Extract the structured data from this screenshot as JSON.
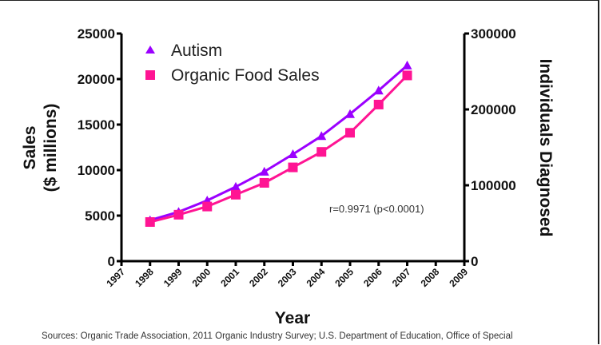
{
  "chart_data": {
    "type": "line",
    "title": "",
    "xlabel": "Year",
    "ylabel": "Sales\n($ millions)",
    "ylabel_lines": [
      "Sales",
      "($ millions)"
    ],
    "y2label": "Individuals Diagnosed",
    "x_ticks": [
      "1997",
      "1998",
      "1999",
      "2000",
      "2001",
      "2002",
      "2003",
      "2004",
      "2005",
      "2006",
      "2007",
      "2008",
      "2009"
    ],
    "xlim": [
      1997,
      2009
    ],
    "ylim": [
      0,
      25000
    ],
    "y_ticks": [
      "0",
      "5000",
      "10000",
      "15000",
      "20000",
      "25000"
    ],
    "y2lim": [
      0,
      300000
    ],
    "y2_ticks": [
      "0",
      "100000",
      "200000",
      "300000"
    ],
    "grid": false,
    "legend_position": "top-left",
    "series": [
      {
        "name": "Autism",
        "axis": "right",
        "marker": "triangle",
        "color": "#9b00ff",
        "x": [
          1998,
          1999,
          2000,
          2001,
          2002,
          2003,
          2004,
          2005,
          2006,
          2007
        ],
        "values": [
          54000,
          65000,
          80000,
          98000,
          118000,
          141000,
          165000,
          194000,
          225000,
          258000
        ]
      },
      {
        "name": "Organic Food Sales",
        "axis": "left",
        "marker": "square",
        "color": "#ff1493",
        "x": [
          1998,
          1999,
          2000,
          2001,
          2002,
          2003,
          2004,
          2005,
          2006,
          2007
        ],
        "values": [
          4300,
          5100,
          6000,
          7300,
          8600,
          10300,
          12000,
          14100,
          17200,
          20400
        ]
      }
    ],
    "annotations": [
      "r=0.9971 (p<0.0001)"
    ]
  },
  "source_note": "Sources: Organic Trade Association,  2011 Organic Industry Survey; U.S. Department of Education, Office of Special"
}
